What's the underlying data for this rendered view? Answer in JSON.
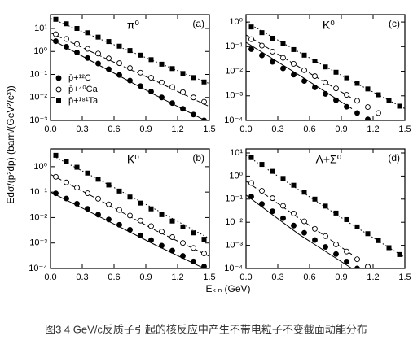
{
  "x_label": "Eₖᵢₙ (GeV)",
  "y_label": "Edσ/(p²dp) (barn/(GeV²/c³))",
  "caption": "图3 4 GeV/c反质子引起的核反应中产生不带电粒子不变截面动能分布",
  "chart_data": [
    {
      "type": "scatter",
      "title": "π⁰",
      "panel_label": "(a)",
      "log_y": true,
      "legend": "left",
      "xlim": [
        0,
        1.5
      ],
      "xticks": [
        {
          "value": 0,
          "label": "0.0"
        },
        0.3,
        0.6,
        0.9,
        1.2,
        1.5
      ],
      "ylim": [
        0.001,
        40
      ],
      "yticks": [
        {
          "value": 0.001,
          "label": "10⁻³"
        },
        {
          "value": 0.01,
          "label": "10⁻²"
        },
        {
          "value": 0.1,
          "label": "10⁻¹"
        },
        {
          "value": 1,
          "label": "10⁰"
        },
        {
          "value": 10,
          "label": "10¹"
        }
      ],
      "x": [
        0.05,
        0.15,
        0.25,
        0.35,
        0.45,
        0.55,
        0.65,
        0.75,
        0.85,
        0.95,
        1.05,
        1.15,
        1.25,
        1.35,
        1.45
      ],
      "series": [
        {
          "name": "p̄+¹²C",
          "marker": "filled-circle",
          "values": [
            2.8,
            1.6,
            0.91,
            0.52,
            0.3,
            0.17,
            0.095,
            0.054,
            0.031,
            0.018,
            0.01,
            0.0057,
            0.0032,
            0.0018,
            0.001
          ]
        },
        {
          "name": "p̄+⁴⁰Ca",
          "marker": "open-circle",
          "values": [
            5.6,
            3.5,
            2.1,
            1.3,
            0.81,
            0.5,
            0.31,
            0.19,
            0.12,
            0.072,
            0.045,
            0.028,
            0.017,
            0.01,
            0.0065
          ]
        },
        {
          "name": "p̄+¹⁸¹Ta",
          "marker": "filled-square",
          "values": [
            25,
            16,
            10,
            6.5,
            4.2,
            2.7,
            1.7,
            1.1,
            0.69,
            0.44,
            0.28,
            0.18,
            0.11,
            0.073,
            0.047
          ]
        }
      ],
      "lines": {
        "x": [
          0,
          0.5,
          1,
          1.5
        ],
        "series": [
          {
            "style": "solid",
            "values": [
              3.5,
              0.2,
              0.012,
              0.0008
            ]
          },
          {
            "style": "dashed",
            "values": [
              6.5,
              0.55,
              0.05,
              0.004
            ]
          },
          {
            "style": "dotted",
            "values": [
              28,
              3,
              0.35,
              0.04
            ]
          }
        ]
      }
    },
    {
      "type": "scatter",
      "title": "K̄⁰",
      "panel_label": "(c)",
      "log_y": true,
      "xlim": [
        0,
        1.5
      ],
      "xticks": [
        {
          "value": 0,
          "label": "0.0"
        },
        0.3,
        0.6,
        0.9,
        1.2,
        1.5
      ],
      "ylim": [
        0.0001,
        2
      ],
      "yticks": [
        {
          "value": 0.0001,
          "label": "10⁻⁴"
        },
        {
          "value": 0.001,
          "label": "10⁻³"
        },
        {
          "value": 0.01,
          "label": "10⁻²"
        },
        {
          "value": 0.1,
          "label": "10⁻¹"
        },
        {
          "value": 1,
          "label": "10⁰"
        }
      ],
      "x": [
        0.05,
        0.15,
        0.25,
        0.35,
        0.45,
        0.55,
        0.65,
        0.75,
        0.85,
        0.95,
        1.05,
        1.15,
        1.25,
        1.35,
        1.45
      ],
      "series": [
        {
          "marker": "filled-circle",
          "values": [
            0.079,
            0.044,
            0.024,
            0.013,
            0.0072,
            0.004,
            0.0022,
            0.0012,
            0.00066,
            0.00036,
            0.0002,
            0.00011,
            null,
            null,
            null
          ]
        },
        {
          "marker": "open-circle",
          "values": [
            0.2,
            0.11,
            0.063,
            0.035,
            0.02,
            0.011,
            0.0063,
            0.0035,
            0.002,
            0.0011,
            0.00063,
            0.00035,
            0.0002,
            null,
            null
          ]
        },
        {
          "marker": "filled-square",
          "values": [
            0.63,
            0.37,
            0.22,
            0.13,
            0.076,
            0.045,
            0.026,
            0.015,
            0.0091,
            0.0054,
            0.0032,
            0.0019,
            0.0011,
            0.00065,
            0.00038
          ]
        }
      ],
      "lines": {
        "x": [
          0,
          0.5,
          1,
          1.5
        ],
        "series": [
          {
            "style": "solid",
            "values": [
              0.15,
              0.007,
              0.0003,
              null
            ]
          },
          {
            "style": "dashed",
            "values": [
              0.3,
              0.015,
              0.0008,
              null
            ]
          },
          {
            "style": "dotted",
            "values": [
              1,
              0.06,
              0.004,
              0.0003
            ]
          }
        ]
      }
    },
    {
      "type": "scatter",
      "title": "K⁰",
      "panel_label": "(b)",
      "log_y": true,
      "xlim": [
        0,
        1.5
      ],
      "xticks": [
        {
          "value": 0,
          "label": "0.0"
        },
        0.3,
        0.6,
        0.9,
        1.2,
        1.5
      ],
      "ylim": [
        0.0001,
        5
      ],
      "yticks": [
        {
          "value": 0.0001,
          "label": "10⁻⁴"
        },
        {
          "value": 0.001,
          "label": "10⁻³"
        },
        {
          "value": 0.01,
          "label": "10⁻²"
        },
        {
          "value": 0.1,
          "label": "10⁻¹"
        },
        {
          "value": 1,
          "label": "10⁰"
        }
      ],
      "x": [
        0.05,
        0.15,
        0.25,
        0.35,
        0.45,
        0.55,
        0.65,
        0.75,
        0.85,
        0.95,
        1.05,
        1.15,
        1.25,
        1.35,
        1.45
      ],
      "series": [
        {
          "marker": "filled-circle",
          "values": [
            0.089,
            0.056,
            0.035,
            0.022,
            0.013,
            0.0084,
            0.0052,
            0.0033,
            0.002,
            0.0013,
            0.00079,
            0.0005,
            0.00031,
            0.00019,
            0.00012
          ]
        },
        {
          "marker": "open-circle",
          "values": [
            0.4,
            0.24,
            0.15,
            0.09,
            0.055,
            0.033,
            0.02,
            0.012,
            0.0076,
            0.0046,
            0.0028,
            0.0017,
            0.001,
            0.00064,
            0.00039
          ]
        },
        {
          "marker": "filled-square",
          "values": [
            2.8,
            1.6,
            0.95,
            0.56,
            0.32,
            0.19,
            0.11,
            0.064,
            0.037,
            0.022,
            0.013,
            0.0073,
            0.0043,
            0.0025,
            0.0014
          ]
        }
      ],
      "lines": {
        "x": [
          0,
          0.5,
          1,
          1.5
        ],
        "series": [
          {
            "style": "solid",
            "values": [
              0.1,
              0.009,
              0.0008,
              8e-05
            ]
          },
          {
            "style": "dashed",
            "values": [
              0.5,
              0.04,
              0.003,
              0.0003
            ]
          },
          {
            "style": "dotted",
            "values": [
              3,
              0.25,
              0.02,
              0.0015
            ]
          }
        ]
      }
    },
    {
      "type": "scatter",
      "title": "Λ+Σ⁰",
      "panel_label": "(d)",
      "log_y": true,
      "xlim": [
        0,
        1.5
      ],
      "xticks": [
        {
          "value": 0,
          "label": "0.0"
        },
        0.3,
        0.6,
        0.9,
        1.2,
        1.5
      ],
      "ylim": [
        0.0001,
        15
      ],
      "yticks": [
        {
          "value": 0.0001,
          "label": "10⁻⁴"
        },
        {
          "value": 0.001,
          "label": "10⁻³"
        },
        {
          "value": 0.01,
          "label": "10⁻²"
        },
        {
          "value": 0.1,
          "label": "10⁻¹"
        },
        {
          "value": 1,
          "label": "10⁰"
        },
        {
          "value": 10,
          "label": "10¹"
        }
      ],
      "x": [
        0.05,
        0.15,
        0.25,
        0.35,
        0.45,
        0.55,
        0.65,
        0.75,
        0.85,
        0.95,
        1.05,
        1.15,
        1.25,
        1.35,
        1.45
      ],
      "series": [
        {
          "marker": "filled-circle",
          "values": [
            0.13,
            0.062,
            0.03,
            0.015,
            0.0072,
            0.0035,
            0.0017,
            0.00085,
            0.00042,
            0.0002,
            0.0001,
            null,
            null,
            null,
            null
          ]
        },
        {
          "marker": "open-circle",
          "values": [
            0.5,
            0.23,
            0.11,
            0.051,
            0.024,
            0.011,
            0.0052,
            0.0025,
            0.0011,
            0.00054,
            0.00025,
            0.00012,
            null,
            null,
            null
          ]
        },
        {
          "marker": "filled-square",
          "values": [
            6.3,
            3.2,
            1.6,
            0.79,
            0.4,
            0.2,
            0.1,
            0.05,
            0.025,
            0.013,
            0.0063,
            0.0032,
            0.0016,
            0.00079,
            0.0004
          ]
        }
      ],
      "lines": {
        "x": [
          0,
          0.5,
          1,
          1.5
        ],
        "series": [
          {
            "style": "solid",
            "values": [
              0.15,
              0.003,
              0.0001,
              null
            ]
          },
          {
            "style": "dashed",
            "values": [
              0.6,
              0.015,
              0.0004,
              null
            ]
          },
          {
            "style": "dotted",
            "values": [
              8,
              0.25,
              0.008,
              0.0003
            ]
          }
        ]
      }
    }
  ]
}
